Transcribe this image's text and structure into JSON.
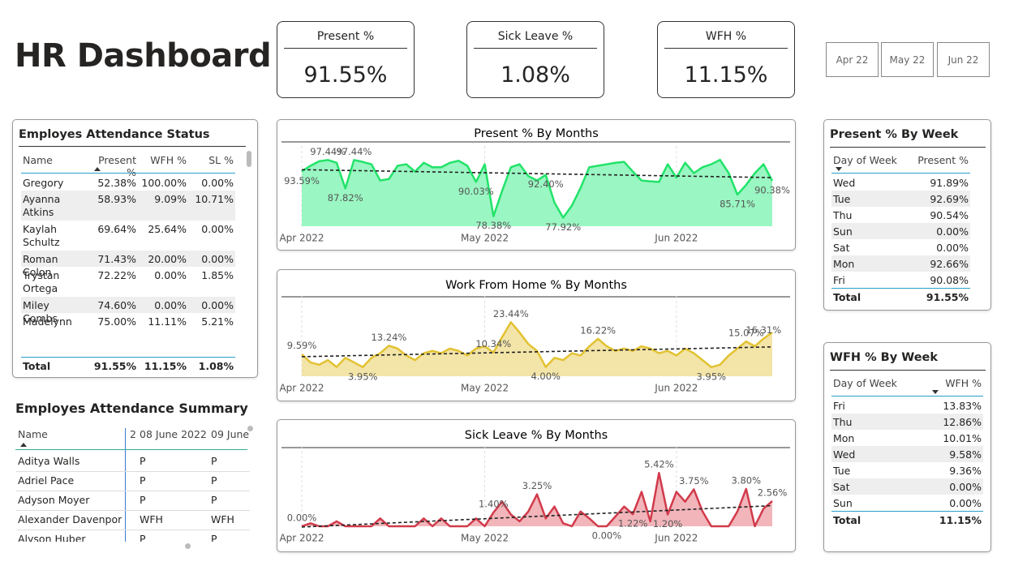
{
  "header": {
    "title": "HR Dashboard"
  },
  "kpis": [
    {
      "label": "Present %",
      "value": "91.55%"
    },
    {
      "label": "Sick Leave %",
      "value": "1.08%"
    },
    {
      "label": "WFH %",
      "value": "11.15%"
    }
  ],
  "month_slicer": [
    "Apr 22",
    "May 22",
    "Jun 22"
  ],
  "status_table": {
    "title": "Employes Attendance Status",
    "columns": [
      "Name",
      "Present %",
      "WFH %",
      "SL %"
    ],
    "rows": [
      [
        "Gregory Carr",
        "52.38%",
        "100.00%",
        "0.00%"
      ],
      [
        "Ayanna Atkins",
        "58.93%",
        "9.09%",
        "10.71%"
      ],
      [
        "Kaylah Schultz",
        "69.64%",
        "25.64%",
        "0.00%"
      ],
      [
        "Roman Colon",
        "71.43%",
        "20.00%",
        "0.00%"
      ],
      [
        "Trystan Ortega",
        "72.22%",
        "0.00%",
        "1.85%"
      ],
      [
        "Miley Combs",
        "74.60%",
        "0.00%",
        "0.00%"
      ],
      [
        "Madelynn",
        "75.00%",
        "11.11%",
        "5.21%"
      ]
    ],
    "total": [
      "Total",
      "91.55%",
      "11.15%",
      "1.08%"
    ]
  },
  "summary_table": {
    "title": "Employes Attendance Summary",
    "columns": [
      "Name",
      "2",
      "08 June 2022",
      "09 June"
    ],
    "rows": [
      [
        "Aditya Walls",
        "P",
        "P"
      ],
      [
        "Adriel Pace",
        "P",
        "P"
      ],
      [
        "Adyson Moyer",
        "P",
        "P"
      ],
      [
        "Alexander Davenport",
        "WFH",
        "WFH"
      ],
      [
        "Alyson Huber",
        "P",
        "P"
      ]
    ]
  },
  "present_by_week": {
    "title": "Present % By Week",
    "columns": [
      "Day of Week",
      "Present %"
    ],
    "rows": [
      [
        "Wed",
        "91.89%"
      ],
      [
        "Tue",
        "92.69%"
      ],
      [
        "Thu",
        "90.54%"
      ],
      [
        "Sun",
        "0.00%"
      ],
      [
        "Sat",
        "0.00%"
      ],
      [
        "Mon",
        "92.66%"
      ],
      [
        "Fri",
        "90.08%"
      ]
    ],
    "total": [
      "Total",
      "91.55%"
    ]
  },
  "wfh_by_week": {
    "title": "WFH % By Week",
    "columns": [
      "Day of Week",
      "WFH %"
    ],
    "rows": [
      [
        "Fri",
        "13.83%"
      ],
      [
        "Thu",
        "12.86%"
      ],
      [
        "Mon",
        "10.01%"
      ],
      [
        "Wed",
        "9.58%"
      ],
      [
        "Tue",
        "9.36%"
      ],
      [
        "Sat",
        "0.00%"
      ],
      [
        "Sun",
        "0.00%"
      ]
    ],
    "total": [
      "Total",
      "11.15%"
    ]
  },
  "chart_data": [
    {
      "type": "area",
      "title": "Present % By Months",
      "ylim": [
        75,
        100
      ],
      "grid": true,
      "trend_line": true,
      "categories": [
        "Apr 2022",
        null,
        null,
        null,
        null,
        null,
        null,
        null,
        null,
        null,
        null,
        null,
        null,
        null,
        null,
        null,
        null,
        null,
        null,
        null,
        null,
        "May 2022",
        null,
        null,
        null,
        null,
        null,
        null,
        null,
        null,
        null,
        null,
        null,
        null,
        null,
        null,
        null,
        null,
        null,
        null,
        null,
        null,
        null,
        "Jun 2022",
        null,
        null,
        null,
        null,
        null,
        null,
        null,
        null,
        null,
        null,
        null
      ],
      "series": [
        {
          "name": "Present %",
          "color": "#22e36a",
          "fill": "#9af6c2",
          "values": [
            93.59,
            95.5,
            97.0,
            97.44,
            96.5,
            87.82,
            97.44,
            96.8,
            96.0,
            90.5,
            91.0,
            95.5,
            96.0,
            93.5,
            96.5,
            95.0,
            95.0,
            96.5,
            97.2,
            95.5,
            90.03,
            96.0,
            78.38,
            87.0,
            95.0,
            96.0,
            92.0,
            90.5,
            92.4,
            83.0,
            77.92,
            82.0,
            88.0,
            95.0,
            95.5,
            96.0,
            96.5,
            96.8,
            93.5,
            90.5,
            90.2,
            90.0,
            96.0,
            91.5,
            96.5,
            93.0,
            95.0,
            96.0,
            97.5,
            93.0,
            85.71,
            89.0,
            93.0,
            96.0,
            90.38
          ],
          "value_labels": [
            "93.59%",
            null,
            null,
            "97.44%",
            null,
            "87.82%",
            "97.44%",
            null,
            null,
            null,
            null,
            null,
            null,
            null,
            null,
            null,
            null,
            null,
            null,
            null,
            "90.03%",
            null,
            "78.38%",
            null,
            null,
            null,
            null,
            null,
            "92.40%",
            null,
            "77.92%",
            null,
            null,
            null,
            null,
            null,
            null,
            null,
            null,
            null,
            null,
            null,
            null,
            null,
            null,
            null,
            null,
            null,
            null,
            null,
            "85.71%",
            null,
            null,
            null,
            "90.38%"
          ]
        }
      ]
    },
    {
      "type": "area",
      "title": "Work From Home % By Months",
      "ylim": [
        0,
        32
      ],
      "grid": true,
      "trend_line": true,
      "categories": [
        "Apr 2022",
        null,
        null,
        null,
        null,
        null,
        null,
        null,
        null,
        null,
        null,
        null,
        null,
        null,
        null,
        null,
        null,
        null,
        null,
        null,
        null,
        "May 2022",
        null,
        null,
        null,
        null,
        null,
        null,
        null,
        null,
        null,
        null,
        null,
        null,
        null,
        null,
        null,
        null,
        null,
        null,
        null,
        null,
        null,
        "Jun 2022",
        null,
        null,
        null,
        null,
        null,
        null,
        null,
        null,
        null,
        null,
        null
      ],
      "series": [
        {
          "name": "WFH %",
          "color": "#e2c232",
          "fill": "#f3e4a8",
          "values": [
            9.59,
            6,
            5,
            7,
            4,
            8,
            6,
            3.95,
            8,
            10,
            13.24,
            12,
            9,
            7,
            10,
            11,
            10,
            12,
            11,
            9,
            12,
            13,
            10.34,
            17,
            23.44,
            19,
            14,
            11,
            4.0,
            8,
            7,
            10,
            9,
            13,
            16.22,
            13,
            11,
            12,
            11,
            13,
            12,
            10,
            11,
            9,
            12,
            10,
            7,
            3.95,
            5,
            9,
            12,
            15.07,
            13,
            16.31,
            19
          ],
          "value_labels": [
            "9.59%",
            null,
            null,
            null,
            null,
            null,
            null,
            "3.95%",
            null,
            null,
            "13.24%",
            null,
            null,
            null,
            null,
            null,
            null,
            null,
            null,
            null,
            null,
            null,
            "10.34%",
            null,
            "23.44%",
            null,
            null,
            null,
            "4.00%",
            null,
            null,
            null,
            null,
            null,
            "16.22%",
            null,
            null,
            null,
            null,
            null,
            null,
            null,
            null,
            null,
            null,
            null,
            null,
            "3.95%",
            null,
            null,
            null,
            "15.07%",
            null,
            "16.31%",
            null
          ]
        }
      ]
    },
    {
      "type": "area",
      "title": "Sick Leave % By Months",
      "ylim": [
        0,
        7.5
      ],
      "grid": true,
      "trend_line": true,
      "categories": [
        "Apr 2022",
        null,
        null,
        null,
        null,
        null,
        null,
        null,
        null,
        null,
        null,
        null,
        null,
        null,
        null,
        null,
        null,
        null,
        null,
        null,
        null,
        "May 2022",
        null,
        null,
        null,
        null,
        null,
        null,
        null,
        null,
        null,
        null,
        null,
        null,
        null,
        null,
        null,
        null,
        null,
        null,
        null,
        null,
        null,
        "Jun 2022",
        null,
        null,
        null,
        null,
        null,
        null,
        null,
        null,
        null,
        null,
        null
      ],
      "series": [
        {
          "name": "Sick Leave %",
          "color": "#d13b4b",
          "fill": "#f1b5ba",
          "values": [
            0.0,
            0.3,
            0,
            0,
            0.5,
            0,
            0,
            0,
            0,
            0.8,
            0,
            0,
            0,
            0,
            0.8,
            0,
            0.8,
            0,
            0,
            0,
            0.8,
            0,
            1.4,
            2.5,
            1.2,
            0.5,
            1.5,
            3.25,
            0.8,
            2,
            0.3,
            0,
            1.5,
            0.8,
            0,
            0.0,
            1.0,
            2.0,
            1.22,
            3.5,
            0.5,
            5.42,
            1.2,
            3.5,
            2.5,
            3.75,
            1.5,
            0,
            0,
            0,
            1.5,
            3.8,
            0,
            1.8,
            2.56
          ],
          "value_labels": [
            "0.00%",
            null,
            null,
            null,
            null,
            null,
            null,
            null,
            null,
            null,
            null,
            null,
            null,
            null,
            null,
            null,
            null,
            null,
            null,
            null,
            null,
            null,
            "1.40%",
            null,
            null,
            null,
            null,
            "3.25%",
            null,
            null,
            null,
            null,
            null,
            null,
            null,
            "0.00%",
            null,
            null,
            "1.22%",
            null,
            null,
            "5.42%",
            "1.20%",
            null,
            null,
            "3.75%",
            null,
            null,
            null,
            null,
            null,
            "3.80%",
            null,
            null,
            "2.56%"
          ]
        }
      ]
    }
  ]
}
